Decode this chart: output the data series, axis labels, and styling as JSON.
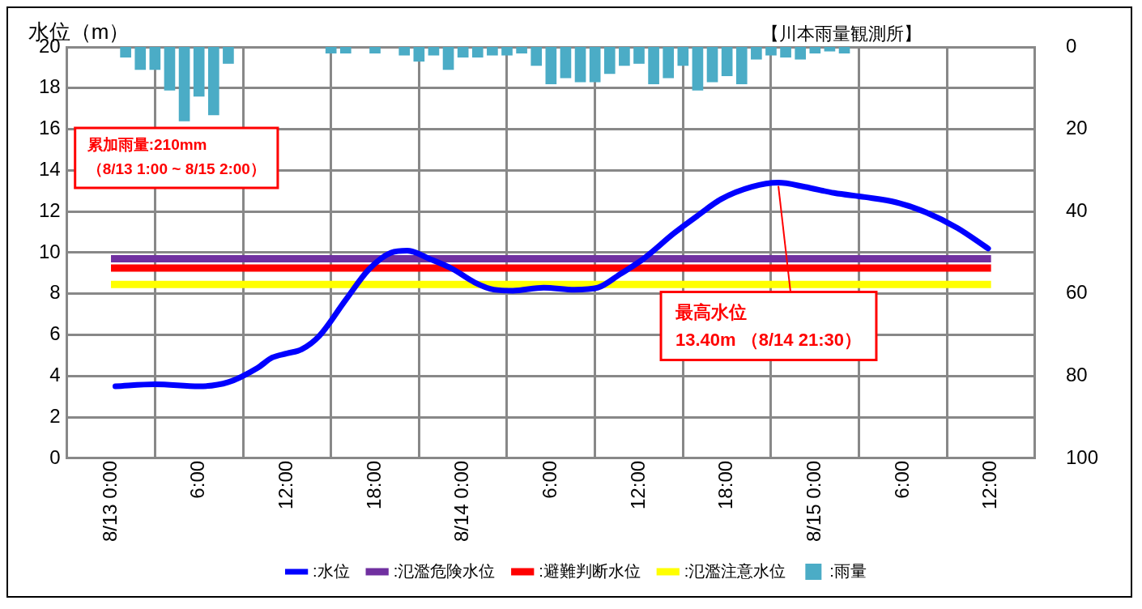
{
  "chart_data": {
    "type": "line",
    "ylabel": "水位（m）",
    "xlim": [
      "--08-13T00:00",
      "--08-15T12:00"
    ],
    "xticks": [
      {
        "value": "--08-13T00:00",
        "label": "8/13 0:00"
      },
      {
        "value": "--08-13T06:00",
        "label": "6:00"
      },
      {
        "value": "--08-13T12:00",
        "label": "12:00"
      },
      {
        "value": "--08-13T18:00",
        "label": "18:00"
      },
      {
        "value": "--08-14T00:00",
        "label": "8/14 0:00"
      },
      {
        "value": "--08-14T06:00",
        "label": "6:00"
      },
      {
        "value": "--08-14T12:00",
        "label": "12:00"
      },
      {
        "value": "--08-14T18:00",
        "label": "18:00"
      },
      {
        "value": "--08-15T00:00",
        "label": "8/15 0:00"
      },
      {
        "value": "--08-15T06:00",
        "label": "6:00"
      },
      {
        "value": "--08-15T12:00",
        "label": "12:00"
      }
    ],
    "ylim": [
      0,
      20
    ],
    "yticks": [
      0,
      2,
      4,
      6,
      8,
      10,
      12,
      14,
      16,
      18,
      20
    ],
    "y2lim": [
      100,
      0
    ],
    "y2ticks": [
      0,
      20,
      40,
      60,
      80,
      100
    ],
    "grid": true,
    "legend": "bottom",
    "series": [
      {
        "name": ":水位",
        "color": "#0000ff",
        "x": [
          "--08-13T00:18",
          "--08-13T03:00",
          "--08-13T06:00",
          "--08-13T08:00",
          "--08-13T10:00",
          "--08-13T11:00",
          "--08-13T12:00",
          "--08-13T13:00",
          "--08-13T14:12",
          "--08-13T16:00",
          "--08-13T17:36",
          "--08-13T19:06",
          "--08-13T20:12",
          "--08-13T21:42",
          "--08-13T23:18",
          "--08-14T00:48",
          "--08-14T02:06",
          "--08-14T03:24",
          "--08-14T05:30",
          "--08-14T07:36",
          "--08-14T09:12",
          "--08-14T10:42",
          "--08-14T12:18",
          "--08-14T14:24",
          "--08-14T16:00",
          "--08-14T17:36",
          "--08-14T19:42",
          "--08-14T21:30",
          "--08-14T23:18",
          "--08-15T01:18",
          "--08-15T03:24",
          "--08-15T05:30",
          "--08-15T07:36",
          "--08-15T09:42",
          "--08-15T11:48"
        ],
        "values": [
          3.5,
          3.6,
          3.5,
          3.7,
          4.4,
          4.9,
          5.1,
          5.3,
          5.95,
          7.7,
          9.2,
          10,
          10.1,
          9.7,
          9.2,
          8.55,
          8.2,
          8.15,
          8.3,
          8.2,
          8.3,
          8.95,
          9.7,
          10.95,
          11.8,
          12.6,
          13.2,
          13.4,
          13.2,
          12.9,
          12.7,
          12.45,
          11.95,
          11.2,
          10.2
        ]
      },
      {
        "name": ":雨量",
        "type": "bar",
        "axis": "y2",
        "color": "#4bacc6",
        "x": [
          "--08-13T01:00",
          "--08-13T02:00",
          "--08-13T03:00",
          "--08-13T04:00",
          "--08-13T05:00",
          "--08-13T06:00",
          "--08-13T07:00",
          "--08-13T08:00",
          "--08-13T15:00",
          "--08-13T16:00",
          "--08-13T18:00",
          "--08-13T20:00",
          "--08-13T21:00",
          "--08-13T22:00",
          "--08-13T23:00",
          "--08-14T00:00",
          "--08-14T01:00",
          "--08-14T02:00",
          "--08-14T03:00",
          "--08-14T04:00",
          "--08-14T05:00",
          "--08-14T06:00",
          "--08-14T07:00",
          "--08-14T08:00",
          "--08-14T09:00",
          "--08-14T10:00",
          "--08-14T11:00",
          "--08-14T12:00",
          "--08-14T13:00",
          "--08-14T14:00",
          "--08-14T15:00",
          "--08-14T16:00",
          "--08-14T17:00",
          "--08-14T18:00",
          "--08-14T19:00",
          "--08-14T20:00",
          "--08-14T21:00",
          "--08-14T22:00",
          "--08-14T23:00",
          "--08-15T00:00",
          "--08-15T01:00",
          "--08-15T02:00"
        ],
        "values": [
          2.5,
          5.5,
          5.5,
          10.5,
          18,
          12,
          16.5,
          4,
          1.5,
          1.5,
          1.5,
          2,
          3.5,
          2,
          5.5,
          2.5,
          2.5,
          2,
          2,
          1.5,
          4.5,
          9,
          7.5,
          8.5,
          8.5,
          6.5,
          4.5,
          4,
          9,
          7.5,
          4.5,
          10.5,
          8.5,
          7,
          9,
          3,
          2,
          2.5,
          3,
          1.5,
          1,
          1.5
        ]
      }
    ],
    "ref_lines": [
      {
        "axis": "y",
        "value": 9.7,
        "label": ":氾濫危険水位",
        "color": "#7030a0"
      },
      {
        "axis": "y",
        "value": 9.25,
        "label": ":避難判断水位",
        "color": "#ff0000"
      },
      {
        "axis": "y",
        "value": 8.45,
        "label": ":氾濫注意水位",
        "color": "#ffff00"
      }
    ],
    "annotations": [
      "【川本雨量観測所】",
      "累加雨量:210mm\n（8/13 1:00 ~ 8/15 2:00）",
      {
        "text": "最高水位\n13.40m （8/14 21:30）",
        "x": "--08-14T21:30",
        "y": 13.4
      }
    ]
  }
}
